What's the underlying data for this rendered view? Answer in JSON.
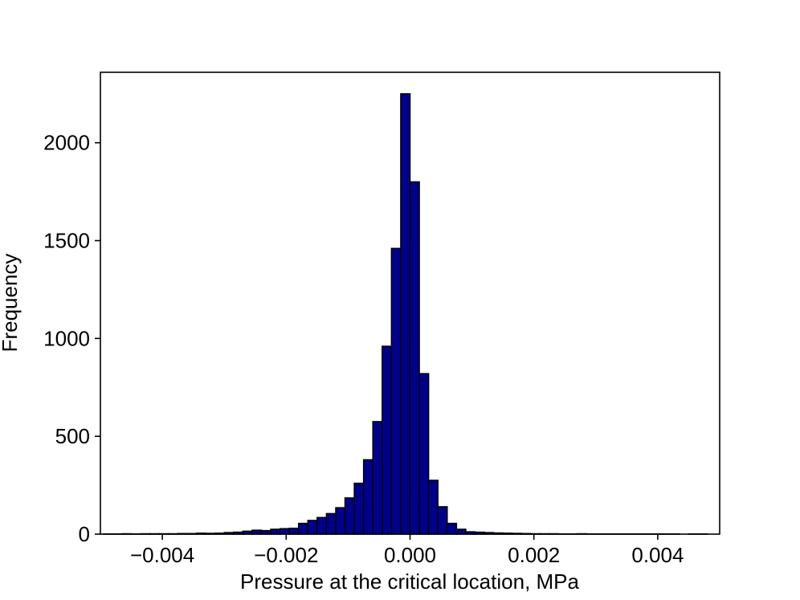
{
  "chart_data": {
    "type": "histogram",
    "x_label": "Pressure at the critical location, MPa",
    "y_label": "Frequency",
    "bins": [
      -0.00495,
      -0.0048,
      -0.00465,
      -0.0045,
      -0.00435,
      -0.0042,
      -0.00405,
      -0.0039,
      -0.00375,
      -0.0036,
      -0.00345,
      -0.0033,
      -0.00315,
      -0.003,
      -0.00285,
      -0.0027,
      -0.00255,
      -0.0024,
      -0.00225,
      -0.0021,
      -0.00195,
      -0.0018,
      -0.00165,
      -0.0015,
      -0.00135,
      -0.0012,
      -0.00105,
      -0.0009,
      -0.00075,
      -0.0006,
      -0.00045,
      -0.0003,
      -0.00015,
      0,
      0.00015,
      0.0003,
      0.00045,
      0.0006,
      0.00075,
      0.0009,
      0.00105,
      0.0012,
      0.00135,
      0.0015,
      0.00165,
      0.0018,
      0.00195,
      0.0021,
      0.00225,
      0.0024,
      0.00255,
      0.0027,
      0.00285,
      0.003,
      0.00315,
      0.0033,
      0.00345,
      0.0036,
      0.00375,
      0.0039,
      0.00405,
      0.0042,
      0.00435,
      0.0045,
      0.00465,
      0.0048,
      0.00495
    ],
    "values": [
      1,
      1,
      2,
      1,
      2,
      2,
      2,
      2,
      3,
      3,
      5,
      4,
      5,
      8,
      10,
      15,
      20,
      18,
      25,
      28,
      30,
      55,
      70,
      85,
      105,
      135,
      185,
      260,
      380,
      575,
      960,
      1460,
      2250,
      1800,
      820,
      275,
      140,
      55,
      25,
      12,
      10,
      8,
      6,
      5,
      4,
      3,
      2,
      2,
      2,
      1,
      1,
      2,
      1,
      1,
      1,
      1,
      1,
      1,
      1,
      1,
      1,
      1,
      0,
      1,
      1,
      0
    ],
    "color": "#00008b",
    "edge_color": "#000000",
    "xlim": [
      -0.005,
      0.005
    ],
    "xticks": [
      {
        "value": -0.004,
        "label": "−0.004"
      },
      {
        "value": -0.002,
        "label": "−0.002"
      },
      {
        "value": 0,
        "label": "0.000"
      },
      0.002,
      0.004
    ],
    "ylim": [
      0,
      2360
    ],
    "yticks": [
      0,
      500,
      1000,
      1500,
      2000
    ],
    "grid": false
  }
}
